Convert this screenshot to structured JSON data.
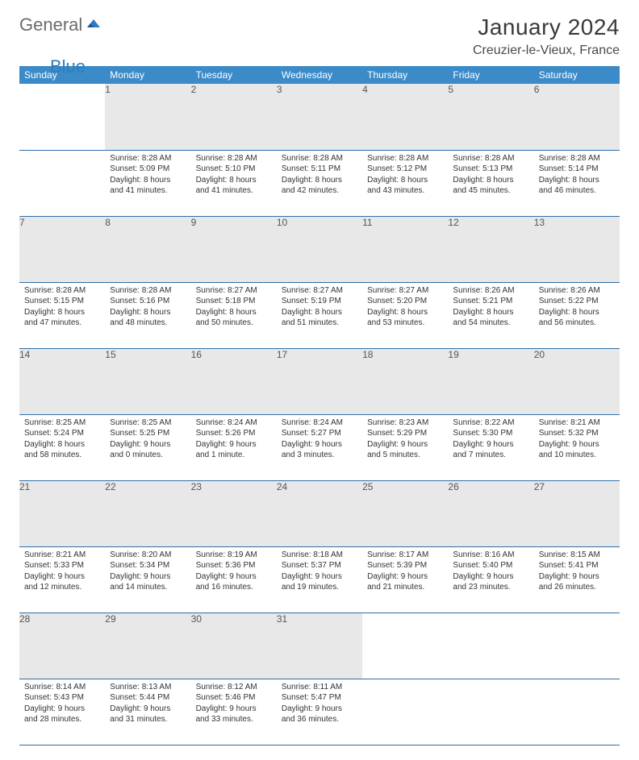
{
  "logo": {
    "text1": "General",
    "text2": "Blue"
  },
  "title": "January 2024",
  "location": "Creuzier-le-Vieux, France",
  "colors": {
    "header_bg": "#3b8bc8",
    "header_text": "#ffffff",
    "daynum_bg": "#e8e8e8",
    "row_border": "#2f6ea8",
    "logo_gray": "#6b6b6b",
    "logo_blue": "#2f7bbf"
  },
  "weekdays": [
    "Sunday",
    "Monday",
    "Tuesday",
    "Wednesday",
    "Thursday",
    "Friday",
    "Saturday"
  ],
  "weeks": [
    [
      null,
      {
        "n": "1",
        "sr": "8:28 AM",
        "ss": "5:09 PM",
        "dl": "8 hours and 41 minutes."
      },
      {
        "n": "2",
        "sr": "8:28 AM",
        "ss": "5:10 PM",
        "dl": "8 hours and 41 minutes."
      },
      {
        "n": "3",
        "sr": "8:28 AM",
        "ss": "5:11 PM",
        "dl": "8 hours and 42 minutes."
      },
      {
        "n": "4",
        "sr": "8:28 AM",
        "ss": "5:12 PM",
        "dl": "8 hours and 43 minutes."
      },
      {
        "n": "5",
        "sr": "8:28 AM",
        "ss": "5:13 PM",
        "dl": "8 hours and 45 minutes."
      },
      {
        "n": "6",
        "sr": "8:28 AM",
        "ss": "5:14 PM",
        "dl": "8 hours and 46 minutes."
      }
    ],
    [
      {
        "n": "7",
        "sr": "8:28 AM",
        "ss": "5:15 PM",
        "dl": "8 hours and 47 minutes."
      },
      {
        "n": "8",
        "sr": "8:28 AM",
        "ss": "5:16 PM",
        "dl": "8 hours and 48 minutes."
      },
      {
        "n": "9",
        "sr": "8:27 AM",
        "ss": "5:18 PM",
        "dl": "8 hours and 50 minutes."
      },
      {
        "n": "10",
        "sr": "8:27 AM",
        "ss": "5:19 PM",
        "dl": "8 hours and 51 minutes."
      },
      {
        "n": "11",
        "sr": "8:27 AM",
        "ss": "5:20 PM",
        "dl": "8 hours and 53 minutes."
      },
      {
        "n": "12",
        "sr": "8:26 AM",
        "ss": "5:21 PM",
        "dl": "8 hours and 54 minutes."
      },
      {
        "n": "13",
        "sr": "8:26 AM",
        "ss": "5:22 PM",
        "dl": "8 hours and 56 minutes."
      }
    ],
    [
      {
        "n": "14",
        "sr": "8:25 AM",
        "ss": "5:24 PM",
        "dl": "8 hours and 58 minutes."
      },
      {
        "n": "15",
        "sr": "8:25 AM",
        "ss": "5:25 PM",
        "dl": "9 hours and 0 minutes."
      },
      {
        "n": "16",
        "sr": "8:24 AM",
        "ss": "5:26 PM",
        "dl": "9 hours and 1 minute."
      },
      {
        "n": "17",
        "sr": "8:24 AM",
        "ss": "5:27 PM",
        "dl": "9 hours and 3 minutes."
      },
      {
        "n": "18",
        "sr": "8:23 AM",
        "ss": "5:29 PM",
        "dl": "9 hours and 5 minutes."
      },
      {
        "n": "19",
        "sr": "8:22 AM",
        "ss": "5:30 PM",
        "dl": "9 hours and 7 minutes."
      },
      {
        "n": "20",
        "sr": "8:21 AM",
        "ss": "5:32 PM",
        "dl": "9 hours and 10 minutes."
      }
    ],
    [
      {
        "n": "21",
        "sr": "8:21 AM",
        "ss": "5:33 PM",
        "dl": "9 hours and 12 minutes."
      },
      {
        "n": "22",
        "sr": "8:20 AM",
        "ss": "5:34 PM",
        "dl": "9 hours and 14 minutes."
      },
      {
        "n": "23",
        "sr": "8:19 AM",
        "ss": "5:36 PM",
        "dl": "9 hours and 16 minutes."
      },
      {
        "n": "24",
        "sr": "8:18 AM",
        "ss": "5:37 PM",
        "dl": "9 hours and 19 minutes."
      },
      {
        "n": "25",
        "sr": "8:17 AM",
        "ss": "5:39 PM",
        "dl": "9 hours and 21 minutes."
      },
      {
        "n": "26",
        "sr": "8:16 AM",
        "ss": "5:40 PM",
        "dl": "9 hours and 23 minutes."
      },
      {
        "n": "27",
        "sr": "8:15 AM",
        "ss": "5:41 PM",
        "dl": "9 hours and 26 minutes."
      }
    ],
    [
      {
        "n": "28",
        "sr": "8:14 AM",
        "ss": "5:43 PM",
        "dl": "9 hours and 28 minutes."
      },
      {
        "n": "29",
        "sr": "8:13 AM",
        "ss": "5:44 PM",
        "dl": "9 hours and 31 minutes."
      },
      {
        "n": "30",
        "sr": "8:12 AM",
        "ss": "5:46 PM",
        "dl": "9 hours and 33 minutes."
      },
      {
        "n": "31",
        "sr": "8:11 AM",
        "ss": "5:47 PM",
        "dl": "9 hours and 36 minutes."
      },
      null,
      null,
      null
    ]
  ],
  "labels": {
    "sunrise": "Sunrise:",
    "sunset": "Sunset:",
    "daylight": "Daylight:"
  }
}
